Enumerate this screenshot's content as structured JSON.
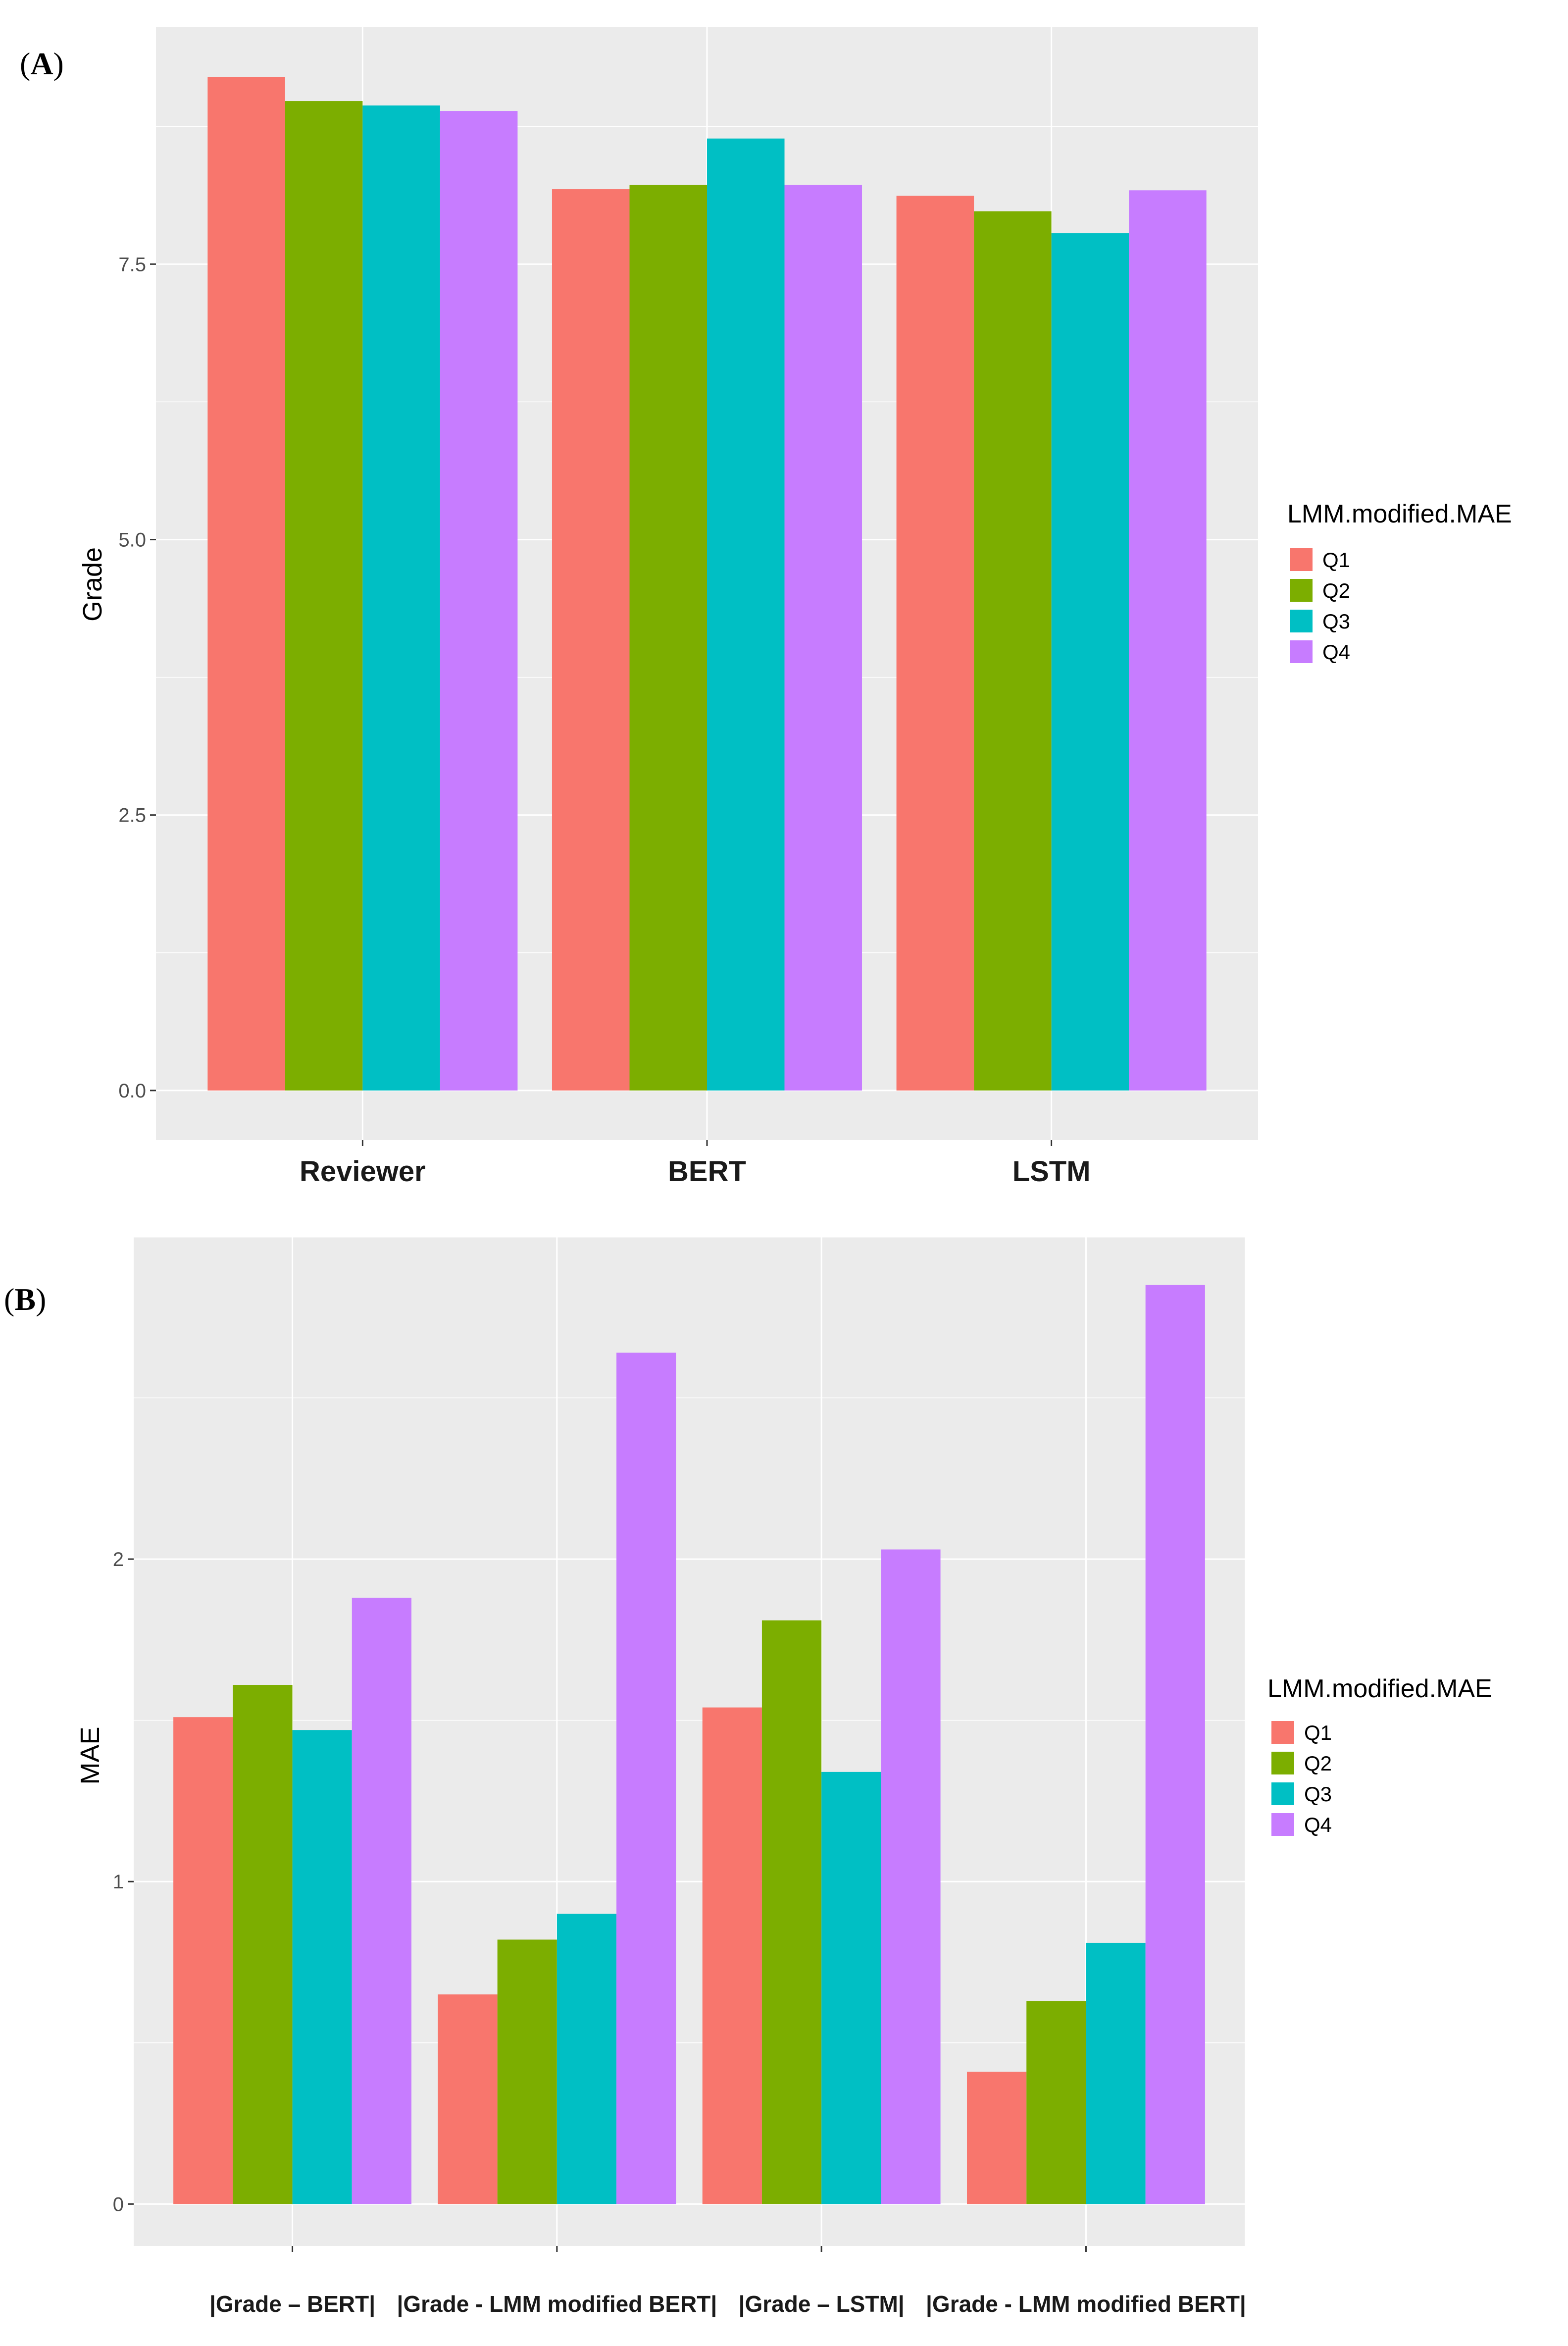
{
  "chart_data": [
    {
      "type": "bar",
      "panel_label": "(A)",
      "panel_letter": "A",
      "categories": [
        "Reviewer",
        "BERT",
        "LSTM"
      ],
      "series": [
        {
          "name": "Q1",
          "color": "#F8766D",
          "values": [
            9.2,
            8.18,
            8.12
          ]
        },
        {
          "name": "Q2",
          "color": "#7CAE00",
          "values": [
            8.98,
            8.22,
            7.98
          ]
        },
        {
          "name": "Q3",
          "color": "#00BFC4",
          "values": [
            8.94,
            8.64,
            7.78
          ]
        },
        {
          "name": "Q4",
          "color": "#C77CFF",
          "values": [
            8.89,
            8.22,
            8.17
          ]
        }
      ],
      "ylabel": "Grade",
      "xlabel": "",
      "ylim": [
        -0.45,
        9.65
      ],
      "yticks": [
        0.0,
        2.5,
        5.0,
        7.5
      ],
      "ytick_labels": [
        "0.0",
        "2.5",
        "5.0",
        "7.5"
      ],
      "legend_title": "LMM.modified.MAE",
      "legend_position": "right",
      "grid": true
    },
    {
      "type": "bar",
      "panel_label": "(B)",
      "panel_letter": "B",
      "categories": [
        "|Grade – BERT|",
        "|Grade - LMM modified BERT|",
        "|Grade – LSTM|",
        "|Grade - LMM modified BERT|"
      ],
      "series": [
        {
          "name": "Q1",
          "color": "#F8766D",
          "values": [
            1.51,
            0.65,
            1.54,
            0.41
          ]
        },
        {
          "name": "Q2",
          "color": "#7CAE00",
          "values": [
            1.61,
            0.82,
            1.81,
            0.63
          ]
        },
        {
          "name": "Q3",
          "color": "#00BFC4",
          "values": [
            1.47,
            0.9,
            1.34,
            0.81
          ]
        },
        {
          "name": "Q4",
          "color": "#C77CFF",
          "values": [
            1.88,
            2.64,
            2.03,
            2.85
          ]
        }
      ],
      "ylabel": "MAE",
      "xlabel": "",
      "ylim": [
        -0.13,
        3.0
      ],
      "yticks": [
        0,
        1,
        2
      ],
      "ytick_labels": [
        "0",
        "1",
        "2"
      ],
      "legend_title": "LMM.modified.MAE",
      "legend_position": "right",
      "grid": true
    }
  ]
}
